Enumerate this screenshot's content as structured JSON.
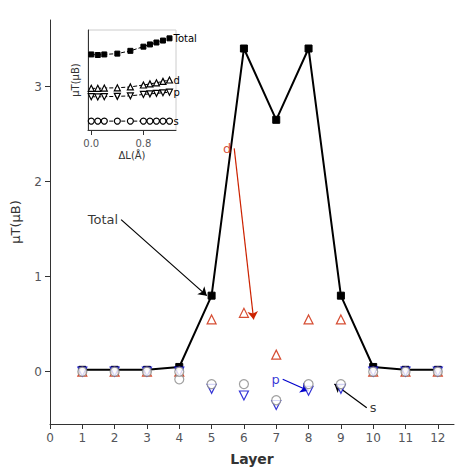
{
  "chart_data": [
    {
      "type": "line",
      "xlabel": "Layer",
      "ylabel": "μT(μB)",
      "xlim": [
        0.0,
        12.5
      ],
      "ylim": [
        -0.55,
        3.7
      ],
      "xticks": [
        0,
        1,
        2,
        3,
        4,
        5,
        6,
        7,
        8,
        9,
        10,
        11,
        12
      ],
      "yticks": [
        0,
        1,
        2,
        3
      ],
      "grid": false,
      "series": [
        {
          "name": "Total",
          "type": "line",
          "color": "#000000",
          "marker": "square",
          "line_style": "solid",
          "x": [
            1,
            2,
            3,
            4,
            5,
            6,
            7,
            8,
            9,
            10,
            11,
            12
          ],
          "values": [
            0.02,
            0.02,
            0.02,
            0.05,
            0.8,
            3.4,
            2.65,
            3.4,
            0.8,
            0.05,
            0.02,
            0.02
          ]
        },
        {
          "name": "d",
          "type": "scatter",
          "color": "#cc2200",
          "marker": "open_triangle",
          "x": [
            5,
            6,
            7,
            8,
            9,
            1,
            2,
            3,
            4,
            10,
            11,
            12
          ],
          "values": [
            0.55,
            0.62,
            0.18,
            0.55,
            0.55,
            0.0,
            0.0,
            0.0,
            0.0,
            0.0,
            0.0,
            0.0
          ]
        },
        {
          "name": "p",
          "type": "scatter",
          "color": "#0000cc",
          "marker": "open_triangle_down",
          "x": [
            5,
            6,
            7,
            8,
            9,
            1,
            2,
            3,
            4,
            10,
            11,
            12
          ],
          "values": [
            -0.18,
            -0.25,
            -0.35,
            -0.2,
            -0.18,
            0.0,
            0.0,
            0.0,
            0.0,
            0.0,
            0.0,
            0.0
          ]
        },
        {
          "name": "s",
          "type": "scatter",
          "color": "#888888",
          "marker": "open_circle",
          "x": [
            4,
            5,
            6,
            7,
            8,
            9,
            1,
            2,
            3,
            4,
            10,
            11,
            12
          ],
          "values": [
            -0.08,
            -0.13,
            -0.13,
            -0.3,
            -0.13,
            -0.13,
            0.0,
            0.0,
            0.0,
            0.0,
            0.0,
            0.0,
            0.0
          ]
        }
      ],
      "annotations": [
        {
          "text": "Total",
          "x": 2.2,
          "y": 1.6,
          "arrow_x": 4.85,
          "arrow_y": 0.8,
          "color": "#000000"
        },
        {
          "text": "d",
          "x": 5.7,
          "y": 2.35,
          "arrow_x": 6.3,
          "arrow_y": 0.55,
          "color": "#cc2200"
        },
        {
          "text": "p",
          "x": 7.2,
          "y": -0.08,
          "arrow_x": 8.0,
          "arrow_y": -0.2,
          "color": "#0000cc"
        },
        {
          "text": "s",
          "x": 9.8,
          "y": -0.38,
          "arrow_x": 8.8,
          "arrow_y": -0.13,
          "color": "#000000"
        }
      ]
    },
    {
      "type": "line",
      "xlabel": "ΔL(Å)",
      "ylabel": "μT(μB)",
      "xlim": [
        -0.05,
        1.3
      ],
      "ylim": [
        0.1,
        3.7
      ],
      "xticks": [
        {
          "value": 0.0,
          "label": "0.0"
        },
        {
          "value": 0.8,
          "label": "0.8"
        }
      ],
      "yticks": [],
      "tick_labels": "x",
      "grid": false,
      "series": [
        {
          "name": "Total",
          "color": "#000000",
          "marker": "square",
          "line_style": "dashed",
          "x": [
            0.0,
            0.1,
            0.2,
            0.4,
            0.6,
            0.8,
            0.9,
            1.0,
            1.1,
            1.2
          ],
          "values": [
            2.82,
            2.8,
            2.82,
            2.85,
            2.95,
            3.1,
            3.18,
            3.25,
            3.32,
            3.4
          ]
        },
        {
          "name": "d",
          "color": "#000000",
          "marker": "open_triangle",
          "line_style": "dashed",
          "x": [
            0.0,
            0.1,
            0.2,
            0.4,
            0.6,
            0.8,
            0.9,
            1.0,
            1.1,
            1.2
          ],
          "values": [
            1.6,
            1.6,
            1.61,
            1.62,
            1.65,
            1.72,
            1.76,
            1.8,
            1.85,
            1.9
          ]
        },
        {
          "name": "p",
          "color": "#000000",
          "marker": "open_triangle_down",
          "line_style": "dashed",
          "x": [
            0.0,
            0.1,
            0.2,
            0.4,
            0.6,
            0.8,
            0.9,
            1.0,
            1.1,
            1.2
          ],
          "values": [
            1.3,
            1.29,
            1.3,
            1.31,
            1.33,
            1.38,
            1.4,
            1.42,
            1.44,
            1.46
          ]
        },
        {
          "name": "s",
          "color": "#000000",
          "marker": "open_circle",
          "line_style": "dashed",
          "x": [
            0.0,
            0.1,
            0.2,
            0.4,
            0.6,
            0.8,
            0.9,
            1.0,
            1.1,
            1.2
          ],
          "values": [
            0.42,
            0.42,
            0.42,
            0.42,
            0.42,
            0.42,
            0.42,
            0.42,
            0.42,
            0.42
          ]
        }
      ]
    }
  ]
}
